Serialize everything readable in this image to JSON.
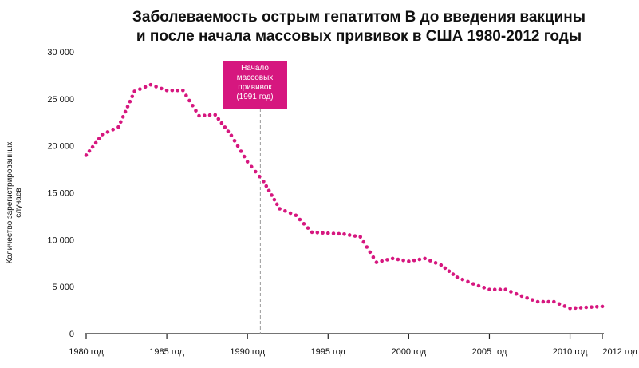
{
  "chart_data": {
    "type": "line",
    "title_line1": "Заболеваемость острым гепатитом B до введения вакцины",
    "title_line2": "и после начала массовых прививок в США 1980-2012 годы",
    "ylabel": "Количество зарегистрированных случаев",
    "xlabel": "",
    "ylim": [
      0,
      30000
    ],
    "xlim": [
      1980,
      2012
    ],
    "y_ticks": [
      0,
      5000,
      10000,
      15000,
      20000,
      25000,
      30000
    ],
    "y_tick_labels": [
      "0",
      "5 000",
      "10 000",
      "15 000",
      "20 000",
      "25 000",
      "30 000"
    ],
    "x_ticks": [
      1980,
      1985,
      1990,
      1995,
      2000,
      2005,
      2010,
      2012
    ],
    "x_tick_labels": [
      "1980 год",
      "1985 год",
      "1990 год",
      "1995 год",
      "2000 год",
      "2005 год",
      "2010 год",
      "2012 год"
    ],
    "grid": false,
    "series": [
      {
        "color": "#d6177f",
        "style": "dotted",
        "x": [
          1980,
          1981,
          1982,
          1983,
          1984,
          1985,
          1986,
          1987,
          1988,
          1989,
          1990,
          1991,
          1992,
          1993,
          1994,
          1995,
          1996,
          1997,
          1998,
          1999,
          2000,
          2001,
          2002,
          2003,
          2004,
          2005,
          2006,
          2007,
          2008,
          2009,
          2010,
          2011,
          2012
        ],
        "y": [
          19000,
          21200,
          22000,
          25800,
          26500,
          25900,
          25900,
          23200,
          23300,
          21100,
          18300,
          16200,
          13300,
          12600,
          10800,
          10700,
          10600,
          10300,
          7600,
          8000,
          7700,
          8000,
          7300,
          6000,
          5300,
          4700,
          4700,
          4000,
          3400,
          3400,
          2700,
          2800,
          2900
        ]
      }
    ],
    "annotation": {
      "lines": [
        "Начало",
        "массовых",
        "прививок",
        "(1991 год)"
      ],
      "x": 1990.8,
      "color": "#d6177f"
    }
  }
}
